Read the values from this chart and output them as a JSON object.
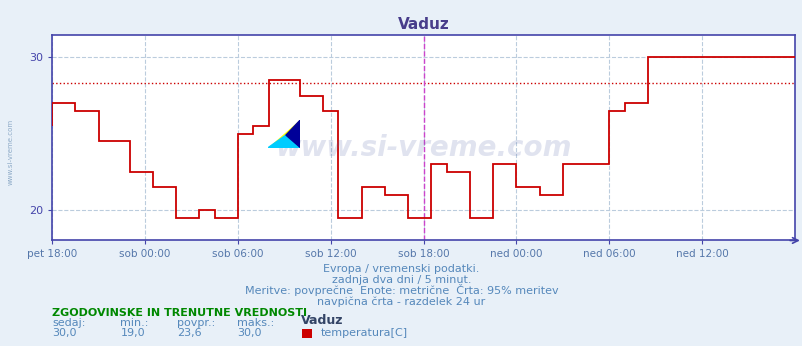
{
  "title": "Vaduz",
  "title_color": "#483D8B",
  "bg_color": "#e8f0f8",
  "plot_bg_color": "#ffffff",
  "line_color": "#cc0000",
  "dotted_line_color": "#cc0000",
  "dotted_line_y": 28.3,
  "grid_color": "#bbccdd",
  "axis_color": "#4444aa",
  "ylim": [
    18.0,
    31.5
  ],
  "yticks": [
    20,
    30
  ],
  "xlabel_color": "#5577aa",
  "xtick_labels": [
    "pet 18:00",
    "sob 00:00",
    "sob 06:00",
    "sob 12:00",
    "sob 18:00",
    "ned 00:00",
    "ned 06:00",
    "ned 12:00"
  ],
  "xtick_positions": [
    0,
    6,
    12,
    18,
    24,
    30,
    36,
    42
  ],
  "total_hours": 48,
  "vline_pos": 24.0,
  "vline_color": "#cc44cc",
  "watermark": "www.si-vreme.com",
  "footer_line1": "Evropa / vremenski podatki.",
  "footer_line2": "zadnja dva dni / 5 minut.",
  "footer_line3": "Meritve: povprečne  Enote: metrične  Črta: 95% meritev",
  "footer_line4": "navpična črta - razdelek 24 ur",
  "footer_color": "#5588bb",
  "legend_title": "ZGODOVINSKE IN TRENUTNE VREDNOSTI",
  "legend_title_color": "#008800",
  "legend_sedaj": "30,0",
  "legend_min": "19,0",
  "legend_povpr": "23,6",
  "legend_maks": "30,0",
  "legend_label": "Vaduz",
  "legend_sublabel": "temperatura[C]",
  "legend_color": "#cc0000",
  "step_data": [
    [
      0.0,
      25.5
    ],
    [
      0.0,
      27.0
    ],
    [
      1.5,
      27.0
    ],
    [
      1.5,
      26.5
    ],
    [
      3.0,
      26.5
    ],
    [
      3.0,
      24.5
    ],
    [
      5.0,
      24.5
    ],
    [
      5.0,
      22.5
    ],
    [
      6.5,
      22.5
    ],
    [
      6.5,
      21.5
    ],
    [
      8.0,
      21.5
    ],
    [
      8.0,
      19.5
    ],
    [
      9.5,
      19.5
    ],
    [
      9.5,
      20.0
    ],
    [
      10.5,
      20.0
    ],
    [
      10.5,
      19.5
    ],
    [
      12.0,
      19.5
    ],
    [
      12.0,
      25.0
    ],
    [
      13.0,
      25.0
    ],
    [
      13.0,
      25.5
    ],
    [
      14.0,
      25.5
    ],
    [
      14.0,
      28.5
    ],
    [
      16.0,
      28.5
    ],
    [
      16.0,
      27.5
    ],
    [
      17.5,
      27.5
    ],
    [
      17.5,
      26.5
    ],
    [
      18.5,
      26.5
    ],
    [
      18.5,
      19.5
    ],
    [
      20.0,
      19.5
    ],
    [
      20.0,
      21.5
    ],
    [
      21.5,
      21.5
    ],
    [
      21.5,
      21.0
    ],
    [
      23.0,
      21.0
    ],
    [
      23.0,
      19.5
    ],
    [
      24.5,
      19.5
    ],
    [
      24.5,
      23.0
    ],
    [
      25.5,
      23.0
    ],
    [
      25.5,
      22.5
    ],
    [
      27.0,
      22.5
    ],
    [
      27.0,
      19.5
    ],
    [
      28.5,
      19.5
    ],
    [
      28.5,
      23.0
    ],
    [
      30.0,
      23.0
    ],
    [
      30.0,
      21.5
    ],
    [
      31.5,
      21.5
    ],
    [
      31.5,
      21.0
    ],
    [
      33.0,
      21.0
    ],
    [
      33.0,
      23.0
    ],
    [
      36.0,
      23.0
    ],
    [
      36.0,
      26.5
    ],
    [
      37.0,
      26.5
    ],
    [
      37.0,
      27.0
    ],
    [
      38.5,
      27.0
    ],
    [
      38.5,
      30.0
    ],
    [
      48.0,
      30.0
    ]
  ]
}
